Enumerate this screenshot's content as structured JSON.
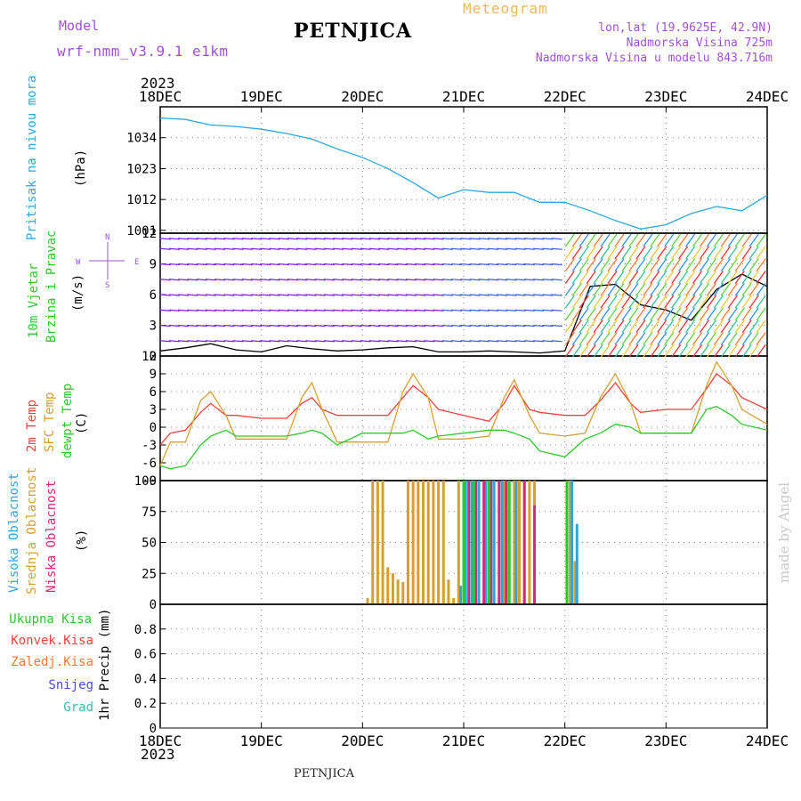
{
  "header": {
    "model_label": "Model",
    "model_name": "wrf-nmm_v3.9.1 e1km",
    "station": "PETNJICA",
    "product": "Meteogram",
    "lonlat": "lon,lat (19.9625E, 42.9N)",
    "altitude": "Nadmorska Visina 725m",
    "model_altitude": "Nadmorska Visina u modelu 843.716m",
    "footer_station": "PETNJICA",
    "watermark": "made by Angel",
    "year_top": "2023",
    "year_bottom": "2023"
  },
  "colors": {
    "pressure": "#29a8e0",
    "wind_speed": "#000000",
    "t2m": "#e8423c",
    "sfc": "#d4a030",
    "dewpt": "#2cc82c",
    "high_cloud": "#29a8e0",
    "mid_cloud": "#d4a030",
    "low_cloud": "#d4287a",
    "purple": "#a050d0",
    "grid": "#888888"
  },
  "chart_data": [
    {
      "type": "line",
      "panel": "pressure",
      "title": "",
      "ylabel": [
        "Pritisak na nivou mora",
        "(hPa)"
      ],
      "x_ticks": [
        "18DEC",
        "19DEC",
        "20DEC",
        "21DEC",
        "22DEC",
        "23DEC",
        "24DEC"
      ],
      "ylim": [
        1000,
        1045
      ],
      "y_ticks": [
        1001,
        1012,
        1023,
        1034
      ],
      "x": [
        0,
        0.25,
        0.5,
        0.75,
        1,
        1.25,
        1.5,
        1.75,
        2,
        2.25,
        2.5,
        2.75,
        3,
        3.25,
        3.5,
        3.75,
        4,
        4.25,
        4.5,
        4.75,
        5,
        5.25,
        5.5,
        5.75,
        6
      ],
      "series": [
        {
          "values": [
            1041,
            1040.5,
            1038.5,
            1038,
            1037,
            1035.5,
            1033.5,
            1030,
            1027,
            1023,
            1018,
            1012.5,
            1015.5,
            1014.5,
            1014.5,
            1011,
            1011,
            1008,
            1004.5,
            1001.5,
            1003,
            1007,
            1009.5,
            1008,
            1013.5
          ]
        }
      ]
    },
    {
      "type": "line",
      "panel": "wind",
      "title": "",
      "ylabel": [
        "10m Vjetar",
        "Brzina i Pravac",
        "(m/s)"
      ],
      "compass": [
        "N",
        "E",
        "S",
        "W"
      ],
      "ylim": [
        0,
        12
      ],
      "y_ticks": [
        0,
        3,
        6,
        9,
        12
      ],
      "x": [
        0,
        0.25,
        0.5,
        0.75,
        1,
        1.25,
        1.5,
        1.75,
        2,
        2.25,
        2.5,
        2.75,
        3,
        3.25,
        3.5,
        3.75,
        4,
        4.25,
        4.5,
        4.75,
        5,
        5.25,
        5.5,
        5.75,
        6
      ],
      "series": [
        {
          "name": "wind_speed",
          "values": [
            0.5,
            0.8,
            1.2,
            0.6,
            0.4,
            1.0,
            0.7,
            0.5,
            0.6,
            0.8,
            0.9,
            0.4,
            0.4,
            0.5,
            0.4,
            0.3,
            0.5,
            6.8,
            7.0,
            5.0,
            4.5,
            3.5,
            6.5,
            8.0,
            6.8
          ]
        }
      ]
    },
    {
      "type": "line",
      "panel": "temperature",
      "title": "",
      "ylabel": [
        "2m Temp",
        "SFC Temp",
        "dewpt Temp",
        "(C)"
      ],
      "ylim": [
        -9,
        12
      ],
      "y_ticks": [
        -9,
        -6,
        -3,
        0,
        3,
        6,
        9,
        12
      ],
      "x": [
        0,
        0.1,
        0.25,
        0.4,
        0.5,
        0.65,
        0.75,
        1,
        1.25,
        1.4,
        1.5,
        1.6,
        1.75,
        2,
        2.25,
        2.4,
        2.5,
        2.65,
        2.75,
        3,
        3.25,
        3.4,
        3.5,
        3.65,
        3.75,
        4,
        4.2,
        4.35,
        4.5,
        4.65,
        4.75,
        5,
        5.25,
        5.4,
        5.5,
        5.65,
        5.75,
        6
      ],
      "series": [
        {
          "name": "2m Temp",
          "values": [
            -3,
            -1,
            -0.5,
            2.5,
            4,
            2,
            2,
            1.5,
            1.5,
            4,
            5,
            3,
            2,
            2,
            2,
            5,
            7,
            5,
            3,
            2,
            1,
            4,
            7,
            3,
            2.5,
            2,
            2,
            4.5,
            7.5,
            4,
            2.5,
            3,
            3,
            6.5,
            9,
            7,
            5,
            3
          ]
        },
        {
          "name": "SFC Temp",
          "values": [
            -6.5,
            -2.5,
            -2.5,
            4.5,
            6,
            2,
            -2,
            -2,
            -2,
            5,
            7.5,
            3,
            -2.5,
            -2.5,
            -2.5,
            6,
            9,
            5,
            -2,
            -2,
            -1.5,
            5,
            8,
            2,
            -1,
            -1.5,
            -1,
            5,
            9,
            4,
            -1,
            -1,
            -1,
            7,
            11,
            7,
            3,
            0.5
          ]
        },
        {
          "name": "dewpt Temp",
          "values": [
            -6.5,
            -7,
            -6.5,
            -3,
            -1.5,
            -0.5,
            -1.5,
            -1.5,
            -1.5,
            -1,
            -0.5,
            -1,
            -3,
            -1,
            -1,
            -1,
            -0.5,
            -2,
            -1.5,
            -1,
            -0.5,
            -0.5,
            -1,
            -2,
            -4,
            -5,
            -2,
            -1,
            0.5,
            0,
            -1,
            -1,
            -1,
            3,
            3.5,
            2,
            0.5,
            -0.5
          ]
        }
      ]
    },
    {
      "type": "bar",
      "panel": "clouds",
      "title": "",
      "ylabel": [
        "Visoka Oblacnost",
        "Srednja Oblacnost",
        "Niska Oblacnost",
        "(%)"
      ],
      "ylim": [
        0,
        100
      ],
      "y_ticks": [
        0,
        25,
        50,
        75,
        100
      ],
      "bar_groups": [
        {
          "name": "Srednja Oblacnost",
          "series_key": "mid_cloud",
          "x": [
            2.05,
            2.1,
            2.15,
            2.2,
            2.25,
            2.3,
            2.35,
            2.4,
            2.45,
            2.5,
            2.55,
            2.6,
            2.65,
            2.7,
            2.75,
            2.8,
            2.85,
            2.9,
            2.95,
            3.0,
            3.1,
            3.2,
            3.3,
            3.4,
            3.5,
            3.55,
            3.6,
            3.65,
            3.7,
            4.05,
            4.1
          ],
          "values": [
            5,
            100,
            100,
            100,
            30,
            25,
            20,
            18,
            100,
            100,
            100,
            100,
            100,
            100,
            100,
            100,
            20,
            5,
            100,
            100,
            100,
            100,
            100,
            100,
            100,
            100,
            100,
            100,
            100,
            100,
            35
          ]
        },
        {
          "name": "Visoka Oblacnost",
          "series_key": "high_cloud",
          "x": [
            2.97,
            3.02,
            3.08,
            3.15,
            3.22,
            3.3,
            3.38,
            3.45,
            3.52,
            4.07,
            4.12
          ],
          "values": [
            15,
            100,
            100,
            100,
            100,
            100,
            100,
            100,
            100,
            100,
            65
          ]
        },
        {
          "name": "Niska Oblacnost",
          "series_key": "low_cloud",
          "x": [
            3.05,
            3.12,
            3.2,
            3.27,
            3.35,
            3.42,
            3.6,
            3.7
          ],
          "values": [
            100,
            100,
            100,
            100,
            100,
            100,
            100,
            80
          ]
        },
        {
          "name": "",
          "series_key": "dewpt",
          "x": [
            3.0,
            3.1,
            3.25,
            3.45,
            4.02
          ],
          "values": [
            100,
            100,
            100,
            100,
            100
          ]
        }
      ]
    },
    {
      "type": "line",
      "panel": "precip",
      "title": "",
      "ylabel": [
        "1hr Precip (mm)"
      ],
      "legend": [
        {
          "name": "Ukupna Kisa",
          "color": "#2cc82c"
        },
        {
          "name": "Konvek.Kisa",
          "color": "#e8423c"
        },
        {
          "name": "Zaledj.Kisa",
          "color": "#f07a30"
        },
        {
          "name": "Snijeg",
          "color": "#4848e0"
        },
        {
          "name": "Grad",
          "color": "#30c0b0"
        }
      ],
      "ylim": [
        0,
        1
      ],
      "y_ticks": [
        0,
        0.2,
        0.4,
        0.6,
        0.8
      ],
      "x": [
        0,
        6
      ],
      "series": [
        {
          "values": [
            0,
            0
          ]
        }
      ]
    }
  ]
}
